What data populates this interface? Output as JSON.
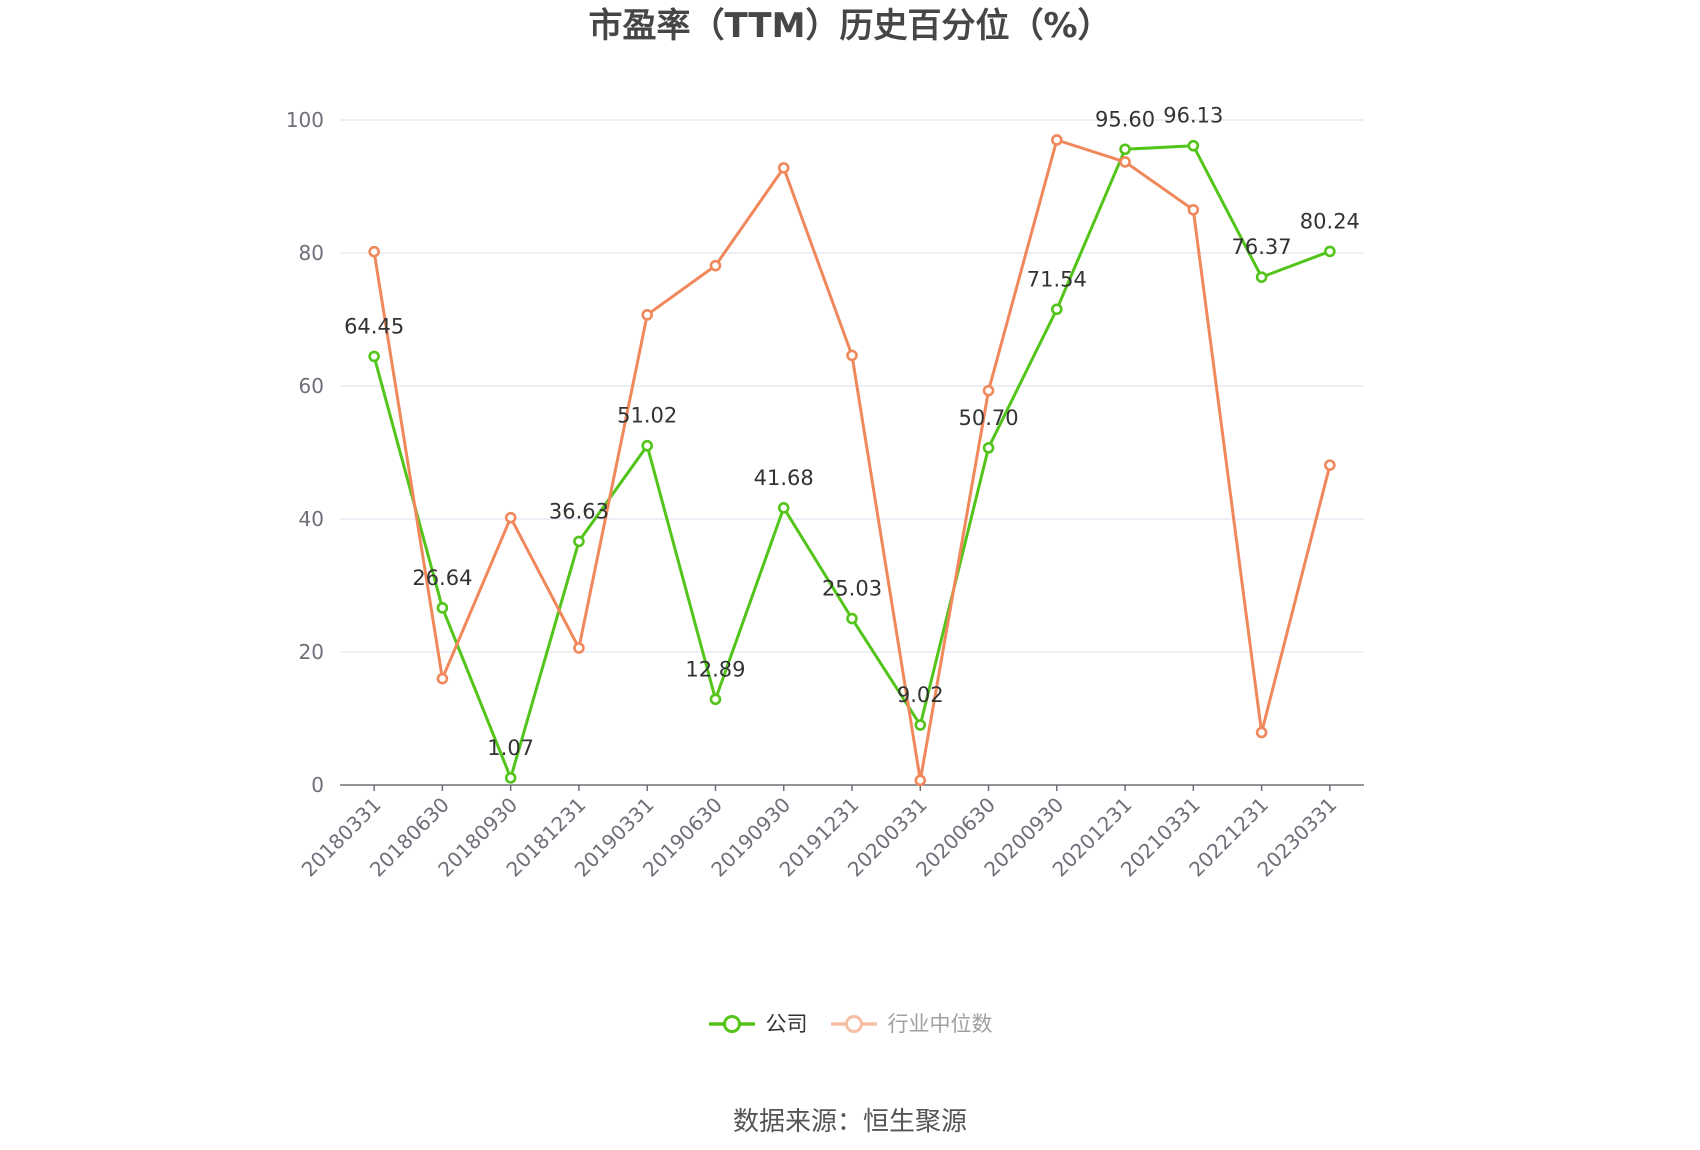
{
  "chart_data": {
    "type": "line",
    "title": "市盈率（TTM）历史百分位（%）",
    "categories": [
      "20180331",
      "20180630",
      "20180930",
      "20181231",
      "20190331",
      "20190630",
      "20190930",
      "20191231",
      "20200331",
      "20200630",
      "20200930",
      "20201231",
      "20210331",
      "20221231",
      "20230331"
    ],
    "series": [
      {
        "name": "公司",
        "color": "#52c41a",
        "data_labels": true,
        "legend_active": true,
        "values": [
          64.45,
          26.64,
          1.07,
          36.63,
          51.02,
          12.89,
          41.68,
          25.03,
          9.02,
          50.7,
          71.54,
          95.6,
          96.13,
          76.37,
          80.24
        ]
      },
      {
        "name": "行业中位数",
        "color": "#f0885c",
        "data_labels": false,
        "legend_active": false,
        "values": [
          80.2,
          16.0,
          40.2,
          20.6,
          70.7,
          78.1,
          92.8,
          64.6,
          0.7,
          59.3,
          97.0,
          93.7,
          86.5,
          7.9,
          48.1
        ]
      }
    ],
    "ylim": [
      0,
      100
    ],
    "yticks": [
      0,
      20,
      40,
      60,
      80,
      100
    ],
    "xlabel": "",
    "ylabel": "",
    "grid": true,
    "legend": "bottom-center",
    "colors": {
      "grid": "#e0e6f1",
      "axis": "#6e7079",
      "label": "#333333"
    }
  },
  "source": "数据来源：恒生聚源"
}
